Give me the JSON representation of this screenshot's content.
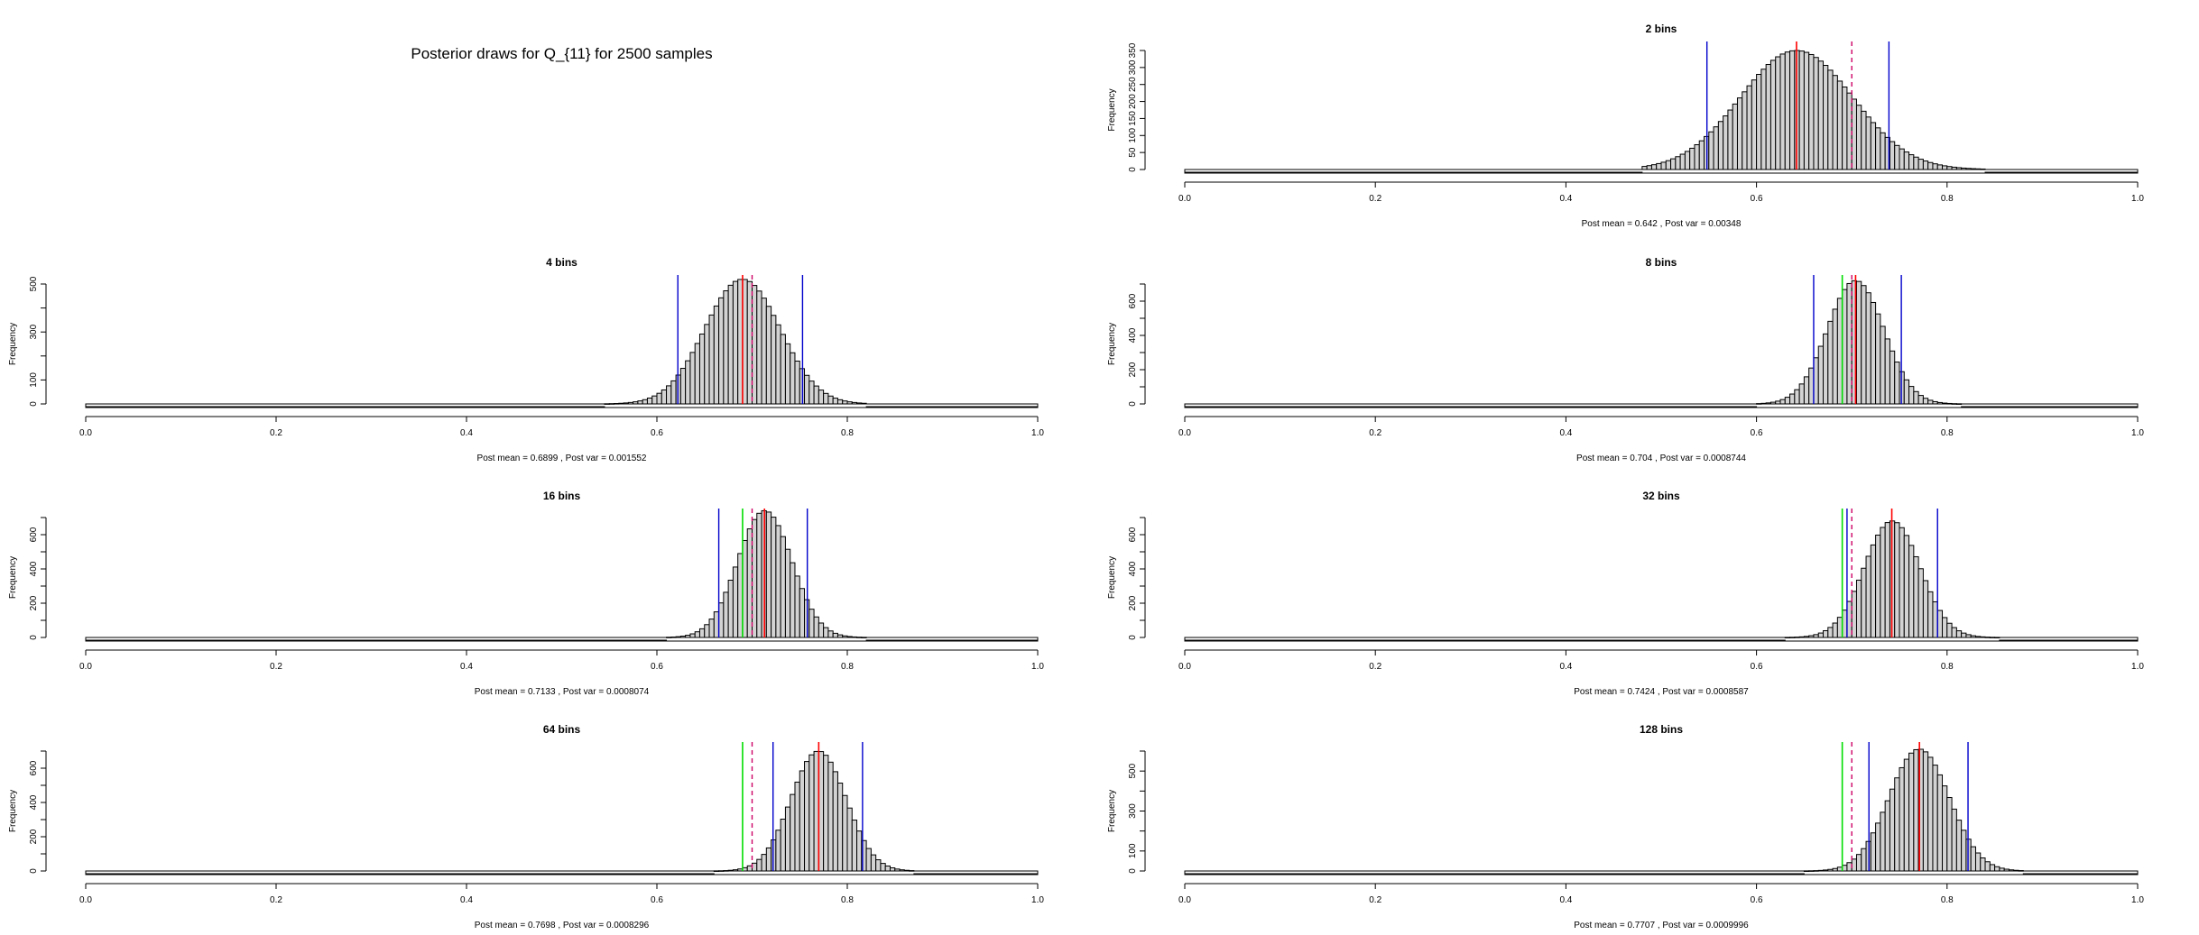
{
  "page": {
    "title": "Posterior draws for Q_{11} for  2500  samples"
  },
  "colors": {
    "bar_fill": "#d3d3d3",
    "bar_stroke": "#000000",
    "mean_line": "#ff0000",
    "true_line": "#00dd00",
    "ci_line": "#0000cc",
    "ref_line": "#cc0066"
  },
  "chart_data": [
    {
      "type": "histogram",
      "title": "2  bins",
      "ylabel": "Frequency",
      "xlabel": "Post mean = 0.642 , Post var = 0.00348",
      "xlim": [
        0.0,
        1.0
      ],
      "xticks": [
        0.0,
        0.2,
        0.4,
        0.6,
        0.8,
        1.0
      ],
      "xtick_labels": [
        "0.0",
        "0.2",
        "0.4",
        "0.6",
        "0.8",
        "1.0"
      ],
      "ylim": [
        0,
        350
      ],
      "yticks": [
        0,
        50,
        100,
        150,
        200,
        250,
        300,
        350
      ],
      "ytick_labels": [
        "0",
        "50",
        "100",
        "150",
        "200",
        "250",
        "300",
        "350"
      ],
      "mean": 0.642,
      "sd": 0.059,
      "peak": 350,
      "data_min": 0.48,
      "data_max": 0.84,
      "mean_line": 0.642,
      "ci": [
        0.548,
        0.739
      ],
      "ref_dashed": 0.7,
      "true_value": null
    },
    {
      "type": "histogram",
      "title": "4  bins",
      "ylabel": "Frequency",
      "xlabel": "Post mean = 0.6899 , Post var = 0.001552",
      "xlim": [
        0.0,
        1.0
      ],
      "xticks": [
        0.0,
        0.2,
        0.4,
        0.6,
        0.8,
        1.0
      ],
      "xtick_labels": [
        "0.0",
        "0.2",
        "0.4",
        "0.6",
        "0.8",
        "1.0"
      ],
      "ylim": [
        0,
        500
      ],
      "yticks": [
        0,
        100,
        200,
        300,
        400,
        500
      ],
      "ytick_labels": [
        "0",
        "100",
        "300",
        "500"
      ],
      "ytick_label_values": [
        0,
        100,
        300,
        500
      ],
      "mean": 0.6899,
      "sd": 0.0394,
      "peak": 520,
      "data_min": 0.54,
      "data_max": 0.82,
      "mean_line": 0.69,
      "ci": [
        0.622,
        0.753
      ],
      "ref_dashed": 0.7,
      "true_value": null
    },
    {
      "type": "histogram",
      "title": "8  bins",
      "ylabel": "Frequency",
      "xlabel": "Post mean = 0.704 , Post var = 0.0008744",
      "xlim": [
        0.0,
        1.0
      ],
      "xticks": [
        0.0,
        0.2,
        0.4,
        0.6,
        0.8,
        1.0
      ],
      "xtick_labels": [
        "0.0",
        "0.2",
        "0.4",
        "0.6",
        "0.8",
        "1.0"
      ],
      "ylim": [
        0,
        700
      ],
      "yticks": [
        0,
        100,
        200,
        300,
        400,
        500,
        600,
        700
      ],
      "ytick_labels": [
        "0",
        "200",
        "400",
        "600"
      ],
      "ytick_label_values": [
        0,
        200,
        400,
        600
      ],
      "mean": 0.704,
      "sd": 0.0296,
      "peak": 720,
      "data_min": 0.6,
      "data_max": 0.82,
      "mean_line": 0.704,
      "ci": [
        0.66,
        0.752
      ],
      "ref_dashed": 0.7,
      "true_value": 0.69
    },
    {
      "type": "histogram",
      "title": "16  bins",
      "ylabel": "Frequency",
      "xlabel": "Post mean = 0.7133 , Post var = 0.0008074",
      "xlim": [
        0.0,
        1.0
      ],
      "xticks": [
        0.0,
        0.2,
        0.4,
        0.6,
        0.8,
        1.0
      ],
      "xtick_labels": [
        "0.0",
        "0.2",
        "0.4",
        "0.6",
        "0.8",
        "1.0"
      ],
      "ylim": [
        0,
        700
      ],
      "yticks": [
        0,
        100,
        200,
        300,
        400,
        500,
        600,
        700
      ],
      "ytick_labels": [
        "0",
        "200",
        "400",
        "600"
      ],
      "ytick_label_values": [
        0,
        200,
        400,
        600
      ],
      "mean": 0.7133,
      "sd": 0.0284,
      "peak": 740,
      "data_min": 0.61,
      "data_max": 0.82,
      "mean_line": 0.713,
      "ci": [
        0.665,
        0.758
      ],
      "ref_dashed": 0.7,
      "true_value": 0.69
    },
    {
      "type": "histogram",
      "title": "32  bins",
      "ylabel": "Frequency",
      "xlabel": "Post mean = 0.7424 , Post var = 0.0008587",
      "xlim": [
        0.0,
        1.0
      ],
      "xticks": [
        0.0,
        0.2,
        0.4,
        0.6,
        0.8,
        1.0
      ],
      "xtick_labels": [
        "0.0",
        "0.2",
        "0.4",
        "0.6",
        "0.8",
        "1.0"
      ],
      "ylim": [
        0,
        700
      ],
      "yticks": [
        0,
        100,
        200,
        300,
        400,
        500,
        600,
        700
      ],
      "ytick_labels": [
        "0",
        "200",
        "400",
        "600"
      ],
      "ytick_label_values": [
        0,
        200,
        400,
        600
      ],
      "mean": 0.7424,
      "sd": 0.0293,
      "peak": 680,
      "data_min": 0.63,
      "data_max": 0.86,
      "mean_line": 0.742,
      "ci": [
        0.695,
        0.79
      ],
      "ref_dashed": 0.7,
      "true_value": 0.69
    },
    {
      "type": "histogram",
      "title": "64  bins",
      "ylabel": "Frequency",
      "xlabel": "Post mean = 0.7698 , Post var = 0.0008296",
      "xlim": [
        0.0,
        1.0
      ],
      "xticks": [
        0.0,
        0.2,
        0.4,
        0.6,
        0.8,
        1.0
      ],
      "xtick_labels": [
        "0.0",
        "0.2",
        "0.4",
        "0.6",
        "0.8",
        "1.0"
      ],
      "ylim": [
        0,
        700
      ],
      "yticks": [
        0,
        100,
        200,
        300,
        400,
        500,
        600,
        700
      ],
      "ytick_labels": [
        "0",
        "200",
        "400",
        "600"
      ],
      "ytick_label_values": [
        0,
        200,
        400,
        600
      ],
      "mean": 0.7698,
      "sd": 0.0288,
      "peak": 700,
      "data_min": 0.66,
      "data_max": 0.87,
      "mean_line": 0.77,
      "ci": [
        0.722,
        0.816
      ],
      "ref_dashed": 0.7,
      "true_value": 0.69
    },
    {
      "type": "histogram",
      "title": "128  bins",
      "ylabel": "Frequency",
      "xlabel": "Post mean = 0.7707 , Post var = 0.0009996",
      "xlim": [
        0.0,
        1.0
      ],
      "xticks": [
        0.0,
        0.2,
        0.4,
        0.6,
        0.8,
        1.0
      ],
      "xtick_labels": [
        "0.0",
        "0.2",
        "0.4",
        "0.6",
        "0.8",
        "1.0"
      ],
      "ylim": [
        0,
        600
      ],
      "yticks": [
        0,
        100,
        200,
        300,
        400,
        500,
        600
      ],
      "ytick_labels": [
        "0",
        "100",
        "300",
        "500"
      ],
      "ytick_label_values": [
        0,
        100,
        300,
        500
      ],
      "mean": 0.7707,
      "sd": 0.0316,
      "peak": 610,
      "data_min": 0.65,
      "data_max": 0.88,
      "mean_line": 0.771,
      "ci": [
        0.718,
        0.822
      ],
      "ref_dashed": 0.7,
      "true_value": 0.69
    }
  ]
}
